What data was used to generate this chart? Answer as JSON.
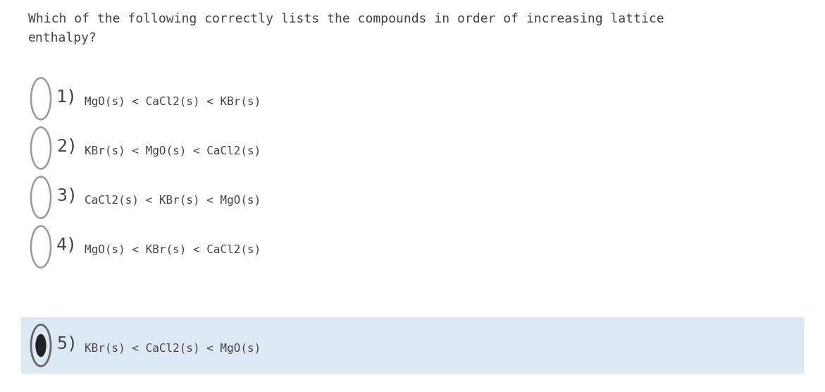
{
  "question_line1": "Which of the following correctly lists the compounds in order of increasing lattice",
  "question_line2": "enthalpy?",
  "options": [
    {
      "number": "1)",
      "text": "MgO(s) < CaCl2(s) < KBr(s)",
      "selected": false
    },
    {
      "number": "2)",
      "text": "KBr(s) < MgO(s) < CaCl2(s)",
      "selected": false
    },
    {
      "number": "3)",
      "text": "CaCl2(s) < KBr(s) < MgO(s)",
      "selected": false
    },
    {
      "number": "4)",
      "text": "MgO(s) < KBr(s) < CaCl2(s)",
      "selected": false
    },
    {
      "number": "5)",
      "text": "KBr(s) < CaCl2(s) < MgO(s)",
      "selected": true
    }
  ],
  "background_color": "#ffffff",
  "selected_bg_color": "#dce9f5",
  "text_color": "#444444",
  "question_font_size": 13,
  "option_number_font_size": 18,
  "option_text_font_size": 11.5,
  "circle_color": "#999999",
  "filled_circle_color": "#222222",
  "font_family": "monospace"
}
